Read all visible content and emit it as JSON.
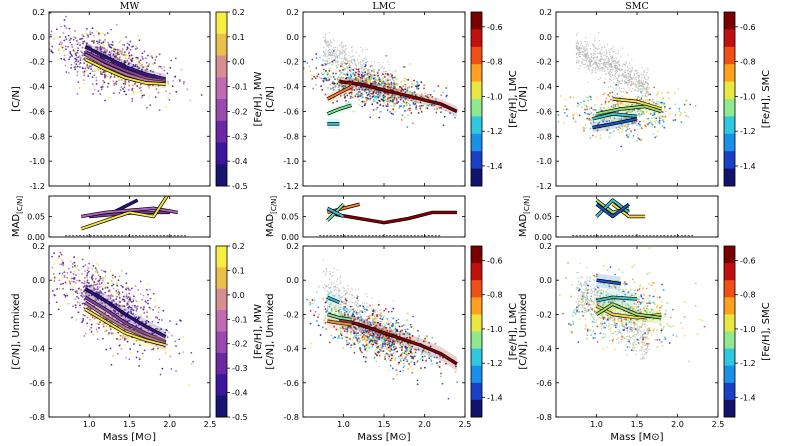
{
  "figure": {
    "width": 793,
    "height": 446
  },
  "chart_data": [
    {
      "id": "mw_top",
      "type": "scatter",
      "title": "MW",
      "ylabel": "[C/N]",
      "xlabel": "",
      "xlim": [
        0.5,
        2.5
      ],
      "ylim": [
        -1.2,
        0.2
      ],
      "yticks": [
        "-1.2",
        "-1.0",
        "-0.8",
        "-0.6",
        "-0.4",
        "-0.2",
        "0.0",
        "0.2"
      ],
      "xticks": [],
      "colorbar": {
        "label": "[Fe/H], MW",
        "ticks": [
          "0.2",
          "0.1",
          "0.0",
          "-0.1",
          "-0.2",
          "-0.3",
          "-0.4",
          "-0.5"
        ],
        "palette": "mw"
      },
      "cloud": {
        "cx": 1.25,
        "cy": -0.2,
        "sx": 0.35,
        "sy": 0.1,
        "slope": -0.2,
        "n": 900,
        "palette": "mw",
        "grey": 0
      },
      "series": [
        {
          "color": "#2a0e8a",
          "x": [
            0.95,
            1.2,
            1.45,
            1.7,
            1.95
          ],
          "y": [
            -0.08,
            -0.16,
            -0.24,
            -0.3,
            -0.34
          ]
        },
        {
          "color": "#7b3fa0",
          "x": [
            0.95,
            1.2,
            1.45,
            1.7,
            1.95
          ],
          "y": [
            -0.12,
            -0.2,
            -0.27,
            -0.33,
            -0.36
          ]
        },
        {
          "color": "#b060c0",
          "x": [
            0.95,
            1.2,
            1.45,
            1.7,
            1.95
          ],
          "y": [
            -0.14,
            -0.23,
            -0.3,
            -0.35,
            -0.37
          ]
        },
        {
          "color": "#f3e33a",
          "x": [
            0.95,
            1.2,
            1.45,
            1.7,
            1.95
          ],
          "y": [
            -0.18,
            -0.26,
            -0.33,
            -0.37,
            -0.38
          ]
        }
      ]
    },
    {
      "id": "lmc_top",
      "type": "scatter",
      "title": "LMC",
      "ylabel": "[C/N]",
      "xlabel": "",
      "xlim": [
        0.5,
        2.5
      ],
      "ylim": [
        -1.2,
        0.2
      ],
      "yticks": [
        "-1.2",
        "-1.0",
        "-0.8",
        "-0.6",
        "-0.4",
        "-0.2",
        "0.0",
        "0.2"
      ],
      "xticks": [],
      "colorbar": {
        "label": "[Fe/H], LMC",
        "ticks": [
          "-0.6",
          "-0.8",
          "-1.0",
          "-1.2",
          "-1.4"
        ],
        "palette": "jet"
      },
      "cloud": {
        "cx": 1.4,
        "cy": -0.42,
        "sx": 0.35,
        "sy": 0.08,
        "slope": -0.15,
        "n": 900,
        "palette": "jet",
        "grey": 500
      },
      "series": [
        {
          "color": "#8b0000",
          "x": [
            0.95,
            1.2,
            1.45,
            1.7,
            1.95,
            2.2,
            2.4
          ],
          "y": [
            -0.36,
            -0.38,
            -0.42,
            -0.46,
            -0.5,
            -0.54,
            -0.6
          ]
        },
        {
          "color": "#ff7f2a",
          "x": [
            0.8,
            0.95,
            1.1
          ],
          "y": [
            -0.5,
            -0.45,
            -0.4
          ]
        },
        {
          "color": "#7de0a0",
          "x": [
            0.8,
            0.95,
            1.1
          ],
          "y": [
            -0.62,
            -0.58,
            -0.55
          ]
        },
        {
          "color": "#37c0d8",
          "x": [
            0.8,
            0.95
          ],
          "y": [
            -0.7,
            -0.7
          ]
        }
      ]
    },
    {
      "id": "smc_top",
      "type": "scatter",
      "title": "SMC",
      "ylabel": "[C/N]",
      "xlabel": "",
      "xlim": [
        0.5,
        2.5
      ],
      "ylim": [
        -1.2,
        0.2
      ],
      "yticks": [
        "-1.2",
        "-1.0",
        "-0.8",
        "-0.6",
        "-0.4",
        "-0.2",
        "0.0",
        "0.2"
      ],
      "xticks": [],
      "colorbar": {
        "label": "[Fe/H], SMC",
        "ticks": [
          "-0.6",
          "-0.8",
          "-1.0",
          "-1.2",
          "-1.4"
        ],
        "palette": "jet"
      },
      "cloud": {
        "cx": 1.35,
        "cy": -0.62,
        "sx": 0.35,
        "sy": 0.09,
        "slope": 0.0,
        "n": 500,
        "palette": "jet_lo",
        "grey": 700
      },
      "series": [
        {
          "color": "#ffd84a",
          "x": [
            1.2,
            1.5,
            1.8
          ],
          "y": [
            -0.5,
            -0.52,
            -0.58
          ]
        },
        {
          "color": "#9be06a",
          "x": [
            1.0,
            1.3,
            1.6,
            1.8
          ],
          "y": [
            -0.62,
            -0.58,
            -0.56,
            -0.6
          ]
        },
        {
          "color": "#3fc7c0",
          "x": [
            0.95,
            1.2,
            1.5
          ],
          "y": [
            -0.66,
            -0.62,
            -0.64
          ]
        },
        {
          "color": "#1a55c8",
          "x": [
            0.95,
            1.2,
            1.5
          ],
          "y": [
            -0.73,
            -0.7,
            -0.66
          ]
        }
      ]
    },
    {
      "id": "mw_mid",
      "type": "line",
      "ylabel": "MAD[C/N]",
      "xlim": [
        0.5,
        2.5
      ],
      "ylim": [
        0,
        0.1
      ],
      "yticks": [
        "0.00",
        "0.05"
      ],
      "xticks": [],
      "series": [
        {
          "color": "#2a0e8a",
          "x": [
            1.0,
            1.3,
            1.6
          ],
          "y": [
            0.05,
            0.06,
            0.09
          ]
        },
        {
          "color": "#7b3fa0",
          "x": [
            1.0,
            1.3,
            1.6,
            2.0
          ],
          "y": [
            0.05,
            0.055,
            0.06,
            0.06
          ]
        },
        {
          "color": "#b060c0",
          "x": [
            0.9,
            1.2,
            1.5,
            1.8,
            2.1
          ],
          "y": [
            0.05,
            0.06,
            0.065,
            0.07,
            0.06
          ]
        },
        {
          "color": "#f3e33a",
          "x": [
            0.9,
            1.2,
            1.5,
            1.8,
            2.1
          ],
          "y": [
            0.02,
            0.04,
            0.06,
            0.05,
            0.14
          ]
        }
      ]
    },
    {
      "id": "lmc_mid",
      "type": "line",
      "ylabel": "MAD[C/N]",
      "xlim": [
        0.5,
        2.5
      ],
      "ylim": [
        0,
        0.1
      ],
      "yticks": [
        "0.00",
        "0.05"
      ],
      "xticks": [],
      "series": [
        {
          "color": "#8b0000",
          "x": [
            0.9,
            1.2,
            1.5,
            1.8,
            2.1,
            2.4
          ],
          "y": [
            0.055,
            0.045,
            0.035,
            0.045,
            0.06,
            0.06
          ]
        },
        {
          "color": "#ff7f2a",
          "x": [
            0.8,
            1.0,
            1.2
          ],
          "y": [
            0.06,
            0.07,
            0.08
          ]
        },
        {
          "color": "#7de0a0",
          "x": [
            0.8,
            1.0
          ],
          "y": [
            0.04,
            0.08
          ]
        },
        {
          "color": "#37c0d8",
          "x": [
            0.8,
            1.0
          ],
          "y": [
            0.07,
            0.05
          ]
        }
      ]
    },
    {
      "id": "smc_mid",
      "type": "line",
      "ylabel": "MAD[C/N]",
      "xlim": [
        0.5,
        2.5
      ],
      "ylim": [
        0,
        0.1
      ],
      "yticks": [
        "0.00",
        "0.05"
      ],
      "xticks": [],
      "series": [
        {
          "color": "#ffd84a",
          "x": [
            1.2,
            1.4,
            1.6
          ],
          "y": [
            0.08,
            0.05,
            0.05
          ]
        },
        {
          "color": "#9be06a",
          "x": [
            1.0,
            1.2,
            1.4
          ],
          "y": [
            0.09,
            0.06,
            0.07
          ]
        },
        {
          "color": "#3fc7c0",
          "x": [
            1.0,
            1.2,
            1.4
          ],
          "y": [
            0.05,
            0.09,
            0.06
          ]
        },
        {
          "color": "#1a55c8",
          "x": [
            1.0,
            1.2,
            1.4
          ],
          "y": [
            0.08,
            0.05,
            0.08
          ]
        }
      ]
    },
    {
      "id": "mw_bot",
      "type": "scatter",
      "ylabel": "[C/N], Unmixed",
      "xlabel": "Mass [M⊙]",
      "xlim": [
        0.5,
        2.5
      ],
      "ylim": [
        -0.8,
        0.2
      ],
      "yticks": [
        "-0.8",
        "-0.6",
        "-0.4",
        "-0.2",
        "0.0",
        "0.2"
      ],
      "xticks": [
        "1.0",
        "1.5",
        "2.0",
        "2.5"
      ],
      "colorbar": {
        "label": "[Fe/H], MW",
        "ticks": [
          "0.2",
          "0.1",
          "0.0",
          "-0.1",
          "-0.2",
          "-0.3",
          "-0.4",
          "-0.5"
        ],
        "palette": "mw"
      },
      "cloud": {
        "cx": 1.25,
        "cy": -0.15,
        "sx": 0.35,
        "sy": 0.1,
        "slope": -0.25,
        "n": 900,
        "palette": "mw",
        "grey": 0
      },
      "series": [
        {
          "color": "#2a0e8a",
          "x": [
            0.95,
            1.2,
            1.45,
            1.7,
            1.95
          ],
          "y": [
            -0.05,
            -0.12,
            -0.2,
            -0.27,
            -0.33
          ]
        },
        {
          "color": "#7b3fa0",
          "x": [
            0.95,
            1.2,
            1.45,
            1.7,
            1.95
          ],
          "y": [
            -0.1,
            -0.17,
            -0.25,
            -0.31,
            -0.36
          ]
        },
        {
          "color": "#b060c0",
          "x": [
            0.95,
            1.2,
            1.45,
            1.7,
            1.95
          ],
          "y": [
            -0.13,
            -0.21,
            -0.28,
            -0.33,
            -0.37
          ]
        },
        {
          "color": "#f3e33a",
          "x": [
            0.95,
            1.2,
            1.45,
            1.7,
            1.95
          ],
          "y": [
            -0.17,
            -0.24,
            -0.31,
            -0.35,
            -0.38
          ]
        }
      ]
    },
    {
      "id": "lmc_bot",
      "type": "scatter",
      "ylabel": "[C/N], Unmixed",
      "xlabel": "Mass [M⊙]",
      "xlim": [
        0.5,
        2.5
      ],
      "ylim": [
        -0.8,
        0.2
      ],
      "yticks": [
        "-0.8",
        "-0.6",
        "-0.4",
        "-0.2",
        "0.0",
        "0.2"
      ],
      "xticks": [
        "1.0",
        "1.5",
        "2.0",
        "2.5"
      ],
      "colorbar": {
        "label": "[Fe/H], LMC",
        "ticks": [
          "-0.6",
          "-0.8",
          "-1.0",
          "-1.2",
          "-1.4"
        ],
        "palette": "jet"
      },
      "cloud": {
        "cx": 1.4,
        "cy": -0.32,
        "sx": 0.35,
        "sy": 0.07,
        "slope": -0.18,
        "n": 900,
        "palette": "jet",
        "grey": 500
      },
      "series": [
        {
          "color": "#8b0000",
          "x": [
            0.95,
            1.2,
            1.45,
            1.7,
            1.95,
            2.2,
            2.4
          ],
          "y": [
            -0.23,
            -0.26,
            -0.3,
            -0.34,
            -0.38,
            -0.43,
            -0.49
          ]
        },
        {
          "color": "#ff7f2a",
          "x": [
            0.8,
            0.95,
            1.1
          ],
          "y": [
            -0.24,
            -0.25,
            -0.26
          ]
        },
        {
          "color": "#7de0a0",
          "x": [
            0.8,
            0.95,
            1.1
          ],
          "y": [
            -0.2,
            -0.22,
            -0.23
          ]
        },
        {
          "color": "#37c0d8",
          "x": [
            0.8,
            0.95
          ],
          "y": [
            -0.1,
            -0.13
          ]
        }
      ]
    },
    {
      "id": "smc_bot",
      "type": "scatter",
      "ylabel": "[C/N], Unmixed",
      "xlabel": "Mass [M⊙]",
      "xlim": [
        0.5,
        2.5
      ],
      "ylim": [
        -0.8,
        0.2
      ],
      "yticks": [
        "-0.8",
        "-0.6",
        "-0.4",
        "-0.2",
        "0.0",
        "0.2"
      ],
      "xticks": [
        "1.0",
        "1.5",
        "2.0",
        "2.5"
      ],
      "colorbar": {
        "label": "[Fe/H], SMC",
        "ticks": [
          "-0.6",
          "-0.8",
          "-1.0",
          "-1.2",
          "-1.4"
        ],
        "palette": "jet"
      },
      "cloud": {
        "cx": 1.35,
        "cy": -0.18,
        "sx": 0.35,
        "sy": 0.1,
        "slope": -0.05,
        "n": 500,
        "palette": "jet_lo",
        "grey": 600
      },
      "series": [
        {
          "color": "#ffd84a",
          "x": [
            1.0,
            1.2,
            1.5,
            1.8
          ],
          "y": [
            -0.15,
            -0.2,
            -0.22,
            -0.2
          ]
        },
        {
          "color": "#9be06a",
          "x": [
            1.0,
            1.2,
            1.5,
            1.8
          ],
          "y": [
            -0.2,
            -0.14,
            -0.2,
            -0.22
          ]
        },
        {
          "color": "#3fc7c0",
          "x": [
            1.0,
            1.2,
            1.5
          ],
          "y": [
            -0.12,
            -0.1,
            -0.11
          ]
        },
        {
          "color": "#1a55c8",
          "x": [
            1.0,
            1.3
          ],
          "y": [
            0.0,
            -0.02
          ]
        }
      ]
    }
  ]
}
